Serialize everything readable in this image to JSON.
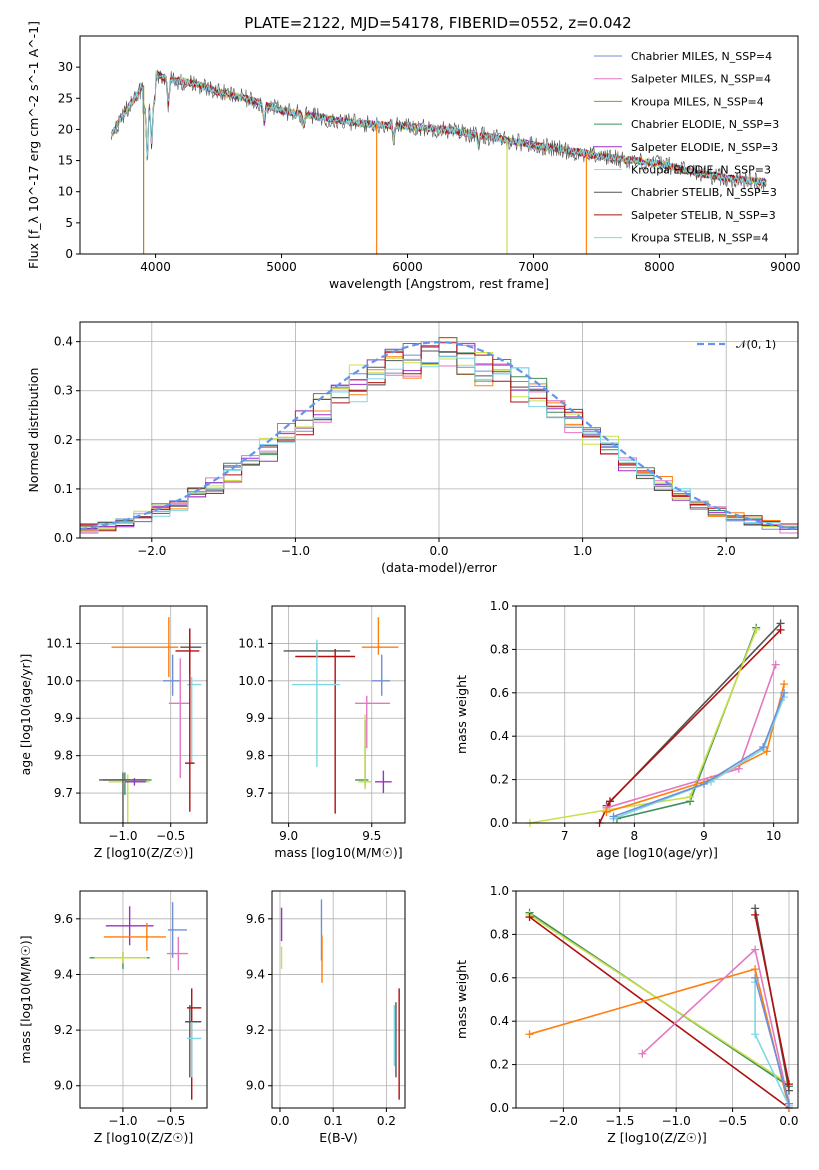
{
  "colors": {
    "chabrier_miles": "#6f8fd6",
    "salpeter_miles": "#e377c2",
    "kroupa_miles": "#b08a1a",
    "chabrier_elodie": "#3f8f5a",
    "salpeter_elodie": "#9b30c8",
    "kroupa_elodie": "#c8e04a",
    "chabrier_stelib": "#555555",
    "salpeter_stelib": "#b01010",
    "kroupa_stelib": "#7fd8e6",
    "orange": "#ff7f0e",
    "gaussian": "#6495ed"
  },
  "chart_data": [
    {
      "id": "spectrum",
      "type": "line",
      "title": "PLATE=2122, MJD=54178, FIBERID=0552, z=0.042",
      "xlabel": "wavelength [Angstrom, rest frame]",
      "ylabel": "Flux [f_λ 10^-17 erg cm^-2 s^-1 A^-1]",
      "xlim": [
        3400,
        9100
      ],
      "ylim": [
        0,
        35
      ],
      "xticks": [
        4000,
        5000,
        6000,
        7000,
        8000,
        9000
      ],
      "yticks": [
        0,
        5,
        10,
        15,
        20,
        25,
        30
      ],
      "grid": false,
      "legend": "top-right",
      "continuum": {
        "x": [
          3650,
          3700,
          3800,
          3900,
          4000,
          4100,
          4300,
          4500,
          4800,
          5000,
          5300,
          5600,
          6000,
          6300,
          6600,
          7000,
          7300,
          7600,
          8000,
          8300,
          8600,
          8850
        ],
        "y": [
          19,
          21,
          24,
          27,
          29,
          28,
          27.5,
          26,
          24.5,
          23,
          22,
          21,
          20.5,
          20,
          19,
          17.5,
          16.5,
          15.5,
          14.5,
          13,
          12,
          11.5
        ]
      },
      "series": [
        {
          "name": "Chabrier MILES, N_SSP=4",
          "color_key": "chabrier_miles"
        },
        {
          "name": "Salpeter MILES, N_SSP=4",
          "color_key": "salpeter_miles"
        },
        {
          "name": "Kroupa MILES, N_SSP=4",
          "color_key": "kroupa_miles"
        },
        {
          "name": "Chabrier ELODIE, N_SSP=3",
          "color_key": "chabrier_elodie"
        },
        {
          "name": "Salpeter ELODIE, N_SSP=3",
          "color_key": "salpeter_elodie"
        },
        {
          "name": "Kroupa ELODIE, N_SSP=3",
          "color_key": "kroupa_elodie"
        },
        {
          "name": "Chabrier STELIB, N_SSP=3",
          "color_key": "chabrier_stelib"
        },
        {
          "name": "Salpeter STELIB, N_SSP=3",
          "color_key": "salpeter_stelib"
        },
        {
          "name": "Kroupa STELIB, N_SSP=4",
          "color_key": "kroupa_stelib"
        }
      ]
    },
    {
      "id": "residuals",
      "type": "line",
      "xlabel": "(data-model)/error",
      "ylabel": "Normed distribution",
      "xlim": [
        -2.5,
        2.5
      ],
      "ylim": [
        0,
        0.44
      ],
      "xticks": [
        -2,
        -1,
        0,
        1,
        2
      ],
      "yticks": [
        0.0,
        0.1,
        0.2,
        0.3,
        0.4
      ],
      "grid": true,
      "legend": "top-right",
      "gaussian_label": "𝒩(0, 1)",
      "bins": 40,
      "series_colors": [
        "chabrier_miles",
        "salpeter_miles",
        "orange",
        "chabrier_elodie",
        "salpeter_elodie",
        "kroupa_elodie",
        "chabrier_stelib",
        "salpeter_stelib",
        "kroupa_stelib"
      ]
    },
    {
      "id": "age_vs_z",
      "type": "scatter",
      "xlabel": "Z [log10(Z/Z☉)]",
      "ylabel": "age  [log10(age/yr)]",
      "xlim": [
        -1.45,
        -0.12
      ],
      "ylim": [
        9.62,
        10.2
      ],
      "xticks": [
        -1.0,
        -0.5
      ],
      "yticks": [
        9.7,
        9.8,
        9.9,
        10.0,
        10.1
      ],
      "grid": true,
      "crosses": [
        {
          "x": -0.52,
          "y": 10.09,
          "xerr": [
            0.6,
            0.1
          ],
          "yerr": [
            0.08,
            0.08
          ],
          "color_key": "orange"
        },
        {
          "x": -0.3,
          "y": 10.09,
          "xerr": [
            0.1,
            0.12
          ],
          "yerr": [
            0.05,
            0.05
          ],
          "color_key": "chabrier_stelib"
        },
        {
          "x": -0.3,
          "y": 10.08,
          "xerr": [
            0.15,
            0.1
          ],
          "yerr": [
            0.06,
            0.02
          ],
          "color_key": "salpeter_stelib"
        },
        {
          "x": -0.28,
          "y": 9.99,
          "xerr": [
            0.05,
            0.1
          ],
          "yerr": [
            0.21,
            0.02
          ],
          "color_key": "kroupa_stelib"
        },
        {
          "x": -0.48,
          "y": 10.0,
          "xerr": [
            0.1,
            0.08
          ],
          "yerr": [
            0.04,
            0.07
          ],
          "color_key": "chabrier_miles"
        },
        {
          "x": -0.4,
          "y": 9.94,
          "xerr": [
            0.12,
            0.1
          ],
          "yerr": [
            0.2,
            0.12
          ],
          "color_key": "salpeter_miles"
        },
        {
          "x": -0.3,
          "y": 9.78,
          "xerr": [
            0.05,
            0.05
          ],
          "yerr": [
            0.13,
            0.36
          ],
          "color_key": "salpeter_stelib"
        },
        {
          "x": -0.98,
          "y": 9.735,
          "xerr": [
            0.23,
            0.28
          ],
          "yerr": [
            0.04,
            0.02
          ],
          "color_key": "chabrier_elodie"
        },
        {
          "x": -0.95,
          "y": 9.73,
          "xerr": [
            0.2,
            0.23
          ],
          "yerr": [
            0.18,
            0.02
          ],
          "color_key": "kroupa_elodie"
        },
        {
          "x": -1.0,
          "y": 9.735,
          "xerr": [
            0.25,
            0.25
          ],
          "yerr": [
            0.16,
            0.02
          ],
          "color_key": "chabrier_stelib"
        },
        {
          "x": -0.88,
          "y": 9.73,
          "xerr": [
            0.1,
            0.12
          ],
          "yerr": [
            0.01,
            0.01
          ],
          "color_key": "salpeter_elodie"
        }
      ]
    },
    {
      "id": "age_vs_mass",
      "type": "scatter",
      "xlabel": "mass [log10(M/M☉)]",
      "ylabel": "",
      "xlim": [
        8.9,
        9.7
      ],
      "ylim": [
        9.62,
        10.2
      ],
      "xticks": [
        9.0,
        9.5
      ],
      "yticks": [
        9.7,
        9.8,
        9.9,
        10.0,
        10.1
      ],
      "grid": true,
      "crosses": [
        {
          "x": 9.17,
          "y": 10.08,
          "xerr": [
            0.2,
            0.2
          ],
          "yerr": [
            0.02,
            0.02
          ],
          "color_key": "chabrier_stelib"
        },
        {
          "x": 9.28,
          "y": 10.065,
          "xerr": [
            0.24,
            0.12
          ],
          "yerr": [
            0.42,
            0.02
          ],
          "color_key": "salpeter_stelib"
        },
        {
          "x": 9.17,
          "y": 9.99,
          "xerr": [
            0.15,
            0.14
          ],
          "yerr": [
            0.22,
            0.12
          ],
          "color_key": "kroupa_stelib"
        },
        {
          "x": 9.54,
          "y": 10.09,
          "xerr": [
            0.1,
            0.12
          ],
          "yerr": [
            0.02,
            0.08
          ],
          "color_key": "orange"
        },
        {
          "x": 9.56,
          "y": 10.0,
          "xerr": [
            0.06,
            0.05
          ],
          "yerr": [
            0.04,
            0.07
          ],
          "color_key": "chabrier_miles"
        },
        {
          "x": 9.47,
          "y": 9.94,
          "xerr": [
            0.07,
            0.14
          ],
          "yerr": [
            0.12,
            0.02
          ],
          "color_key": "salpeter_miles"
        },
        {
          "x": 9.46,
          "y": 9.735,
          "xerr": [
            0.06,
            0.02
          ],
          "yerr": [
            0.02,
            0.16
          ],
          "color_key": "chabrier_elodie"
        },
        {
          "x": 9.46,
          "y": 9.73,
          "xerr": [
            0.04,
            0.04
          ],
          "yerr": [
            0.02,
            0.18
          ],
          "color_key": "kroupa_elodie"
        },
        {
          "x": 9.57,
          "y": 9.73,
          "xerr": [
            0.05,
            0.05
          ],
          "yerr": [
            0.03,
            0.03
          ],
          "color_key": "salpeter_elodie"
        }
      ]
    },
    {
      "id": "weight_vs_age",
      "type": "line",
      "xlabel": "age  [log10(age/yr)]",
      "ylabel": "mass weight",
      "xlim": [
        6.3,
        10.35
      ],
      "ylim": [
        0,
        1.0
      ],
      "xticks": [
        7,
        8,
        9,
        10
      ],
      "yticks": [
        0.0,
        0.2,
        0.4,
        0.6,
        0.8,
        1.0
      ],
      "grid": true,
      "series": [
        {
          "color_key": "chabrier_stelib",
          "x": [
            7.6,
            10.1
          ],
          "y": [
            0.08,
            0.92
          ]
        },
        {
          "color_key": "salpeter_stelib",
          "x": [
            7.5,
            7.65,
            10.1
          ],
          "y": [
            0.0,
            0.1,
            0.89
          ]
        },
        {
          "color_key": "chabrier_elodie",
          "x": [
            7.75,
            8.8,
            9.75
          ],
          "y": [
            0.02,
            0.1,
            0.9
          ]
        },
        {
          "color_key": "kroupa_elodie",
          "x": [
            6.5,
            7.6,
            8.8,
            9.75
          ],
          "y": [
            0.0,
            0.06,
            0.12,
            0.89
          ]
        },
        {
          "color_key": "salpeter_miles",
          "x": [
            7.6,
            9.5,
            10.03
          ],
          "y": [
            0.07,
            0.25,
            0.73
          ]
        },
        {
          "color_key": "orange",
          "x": [
            7.6,
            9.1,
            9.9,
            10.15
          ],
          "y": [
            0.05,
            0.2,
            0.33,
            0.64
          ]
        },
        {
          "color_key": "kroupa_stelib",
          "x": [
            7.7,
            9.1,
            9.85,
            10.15
          ],
          "y": [
            0.02,
            0.19,
            0.34,
            0.58
          ]
        },
        {
          "color_key": "chabrier_miles",
          "x": [
            7.7,
            9.0,
            9.85,
            10.15
          ],
          "y": [
            0.03,
            0.18,
            0.35,
            0.6
          ]
        }
      ]
    },
    {
      "id": "mass_vs_z",
      "type": "scatter",
      "xlabel": "Z [log10(Z/Z☉)]",
      "ylabel": "mass [log10(M/M☉)]",
      "xlim": [
        -1.45,
        -0.12
      ],
      "ylim": [
        8.92,
        9.7
      ],
      "xticks": [
        -1.0,
        -0.5
      ],
      "yticks": [
        9.0,
        9.2,
        9.4,
        9.6
      ],
      "grid": true,
      "crosses": [
        {
          "x": -0.93,
          "y": 9.575,
          "xerr": [
            0.25,
            0.25
          ],
          "yerr": [
            0.07,
            0.07
          ],
          "color_key": "salpeter_elodie"
        },
        {
          "x": -0.75,
          "y": 9.535,
          "xerr": [
            0.45,
            0.2
          ],
          "yerr": [
            0.05,
            0.05
          ],
          "color_key": "orange"
        },
        {
          "x": -0.48,
          "y": 9.56,
          "xerr": [
            0.05,
            0.15
          ],
          "yerr": [
            0.1,
            0.1
          ],
          "color_key": "chabrier_miles"
        },
        {
          "x": -0.42,
          "y": 9.475,
          "xerr": [
            0.12,
            0.1
          ],
          "yerr": [
            0.06,
            0.06
          ],
          "color_key": "salpeter_miles"
        },
        {
          "x": -1.0,
          "y": 9.46,
          "xerr": [
            0.35,
            0.28
          ],
          "yerr": [
            0.04,
            0.02
          ],
          "color_key": "chabrier_elodie"
        },
        {
          "x": -1.0,
          "y": 9.46,
          "xerr": [
            0.3,
            0.25
          ],
          "yerr": [
            0.02,
            0.02
          ],
          "color_key": "kroupa_elodie"
        },
        {
          "x": -0.3,
          "y": 9.23,
          "xerr": [
            0.05,
            0.12
          ],
          "yerr": [
            0.2,
            0.06
          ],
          "color_key": "chabrier_stelib"
        },
        {
          "x": -0.28,
          "y": 9.28,
          "xerr": [
            0.05,
            0.1
          ],
          "yerr": [
            0.33,
            0.07
          ],
          "color_key": "salpeter_stelib"
        },
        {
          "x": -0.28,
          "y": 9.17,
          "xerr": [
            0.05,
            0.1
          ],
          "yerr": [
            0.14,
            0.06
          ],
          "color_key": "kroupa_stelib"
        }
      ]
    },
    {
      "id": "mass_vs_ebv",
      "type": "scatter",
      "xlabel": "E(B-V)",
      "ylabel": "",
      "xlim": [
        -0.015,
        0.235
      ],
      "ylim": [
        8.92,
        9.7
      ],
      "xticks": [
        0.0,
        0.1,
        0.2
      ],
      "yticks": [
        9.0,
        9.2,
        9.4,
        9.6
      ],
      "grid": true,
      "crosses": [
        {
          "x": 0.003,
          "y": 9.58,
          "xerr": [
            0.0,
            0.0
          ],
          "yerr": [
            0.06,
            0.06
          ],
          "color_key": "salpeter_elodie"
        },
        {
          "x": 0.003,
          "y": 9.46,
          "xerr": [
            0.0,
            0.0
          ],
          "yerr": [
            0.04,
            0.04
          ],
          "color_key": "kroupa_elodie"
        },
        {
          "x": 0.078,
          "y": 9.56,
          "xerr": [
            0.0,
            0.0
          ],
          "yerr": [
            0.11,
            0.11
          ],
          "color_key": "chabrier_miles"
        },
        {
          "x": 0.079,
          "y": 9.48,
          "xerr": [
            0.0,
            0.0
          ],
          "yerr": [
            0.11,
            0.06
          ],
          "color_key": "orange"
        },
        {
          "x": 0.215,
          "y": 9.18,
          "xerr": [
            0.0,
            0.0
          ],
          "yerr": [
            0.11,
            0.11
          ],
          "color_key": "kroupa_stelib"
        },
        {
          "x": 0.218,
          "y": 9.23,
          "xerr": [
            0.0,
            0.0
          ],
          "yerr": [
            0.2,
            0.07
          ],
          "color_key": "chabrier_stelib"
        },
        {
          "x": 0.224,
          "y": 9.2,
          "xerr": [
            0.0,
            0.0
          ],
          "yerr": [
            0.25,
            0.15
          ],
          "color_key": "salpeter_stelib"
        }
      ]
    },
    {
      "id": "weight_vs_z",
      "type": "line",
      "xlabel": "Z [log10(Z/Z☉)]",
      "ylabel": "mass weight",
      "xlim": [
        -2.42,
        0.08
      ],
      "ylim": [
        0,
        1.0
      ],
      "xticks": [
        -2.0,
        -1.5,
        -1.0,
        -0.5,
        0.0
      ],
      "yticks": [
        0.0,
        0.2,
        0.4,
        0.6,
        0.8,
        1.0
      ],
      "grid": true,
      "series": [
        {
          "color_key": "chabrier_elodie",
          "x": [
            -2.3,
            0.0
          ],
          "y": [
            0.9,
            0.1
          ]
        },
        {
          "color_key": "kroupa_elodie",
          "x": [
            -2.3,
            0.0
          ],
          "y": [
            0.89,
            0.11
          ]
        },
        {
          "color_key": "salpeter_stelib",
          "x": [
            -2.3,
            0.0
          ],
          "y": [
            0.88,
            0.0
          ]
        },
        {
          "color_key": "orange",
          "x": [
            -2.3,
            -0.3,
            0.0
          ],
          "y": [
            0.34,
            0.64,
            0.0
          ]
        },
        {
          "color_key": "salpeter_miles",
          "x": [
            -1.3,
            -0.3,
            0.0
          ],
          "y": [
            0.25,
            0.73,
            0.02
          ]
        },
        {
          "color_key": "chabrier_stelib",
          "x": [
            -0.3,
            0.0
          ],
          "y": [
            0.92,
            0.08
          ]
        },
        {
          "color_key": "salpeter_stelib",
          "x": [
            -0.3,
            0.0
          ],
          "y": [
            0.89,
            0.11
          ]
        },
        {
          "color_key": "kroupa_stelib",
          "x": [
            -0.3,
            -0.3,
            0.0
          ],
          "y": [
            0.58,
            0.34,
            0.01
          ]
        },
        {
          "color_key": "chabrier_miles",
          "x": [
            -0.3,
            0.0
          ],
          "y": [
            0.6,
            0.02
          ]
        }
      ]
    }
  ]
}
